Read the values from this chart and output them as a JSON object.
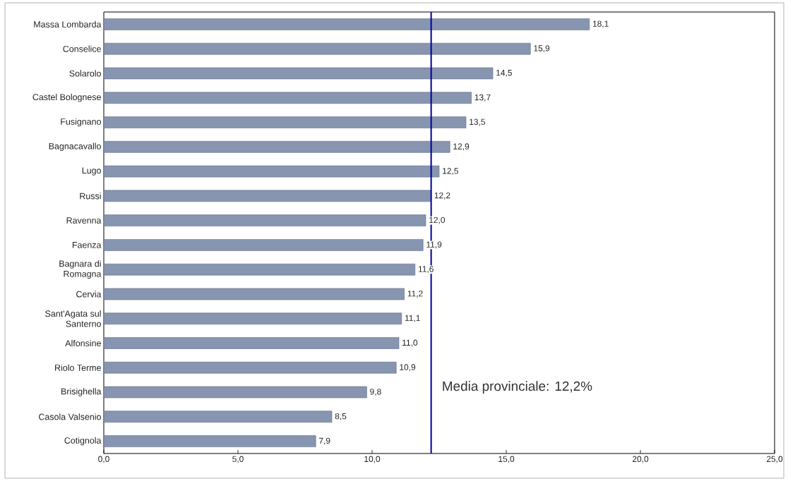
{
  "chart_data": {
    "type": "bar",
    "orientation": "horizontal",
    "categories": [
      "Massa Lombarda",
      "Conselice",
      "Solarolo",
      "Castel Bolognese",
      "Fusignano",
      "Bagnacavallo",
      "Lugo",
      "Russi",
      "Ravenna",
      "Faenza",
      "Bagnara di Romagna",
      "Cervia",
      "Sant'Agata sul Santerno",
      "Alfonsine",
      "Riolo Terme",
      "Brisighella",
      "Casola Valsenio",
      "Cotignola"
    ],
    "values": [
      18.1,
      15.9,
      14.5,
      13.7,
      13.5,
      12.9,
      12.5,
      12.2,
      12.0,
      11.9,
      11.6,
      11.2,
      11.1,
      11.0,
      10.9,
      9.8,
      8.5,
      7.9
    ],
    "value_labels": [
      "18,1",
      "15,9",
      "14,5",
      "13,7",
      "13,5",
      "12,9",
      "12,5",
      "12,2",
      "12,0",
      "11,9",
      "11,6",
      "11,2",
      "11,1",
      "11,0",
      "10,9",
      "9,8",
      "8,5",
      "7,9"
    ],
    "color": "#8795b0",
    "xlim": [
      0,
      25
    ],
    "xticks": [
      {
        "value": 0,
        "label": "0,0"
      },
      {
        "value": 5,
        "label": "5,0"
      },
      {
        "value": 10,
        "label": "10,0"
      },
      {
        "value": 15,
        "label": "15,0"
      },
      {
        "value": 20,
        "label": "20,0"
      },
      {
        "value": 25,
        "label": "25,0"
      }
    ],
    "ref_lines": [
      {
        "axis": "x",
        "value": 12.2,
        "label": "Media provinciale: 12,2%",
        "color": "#000099"
      }
    ]
  }
}
